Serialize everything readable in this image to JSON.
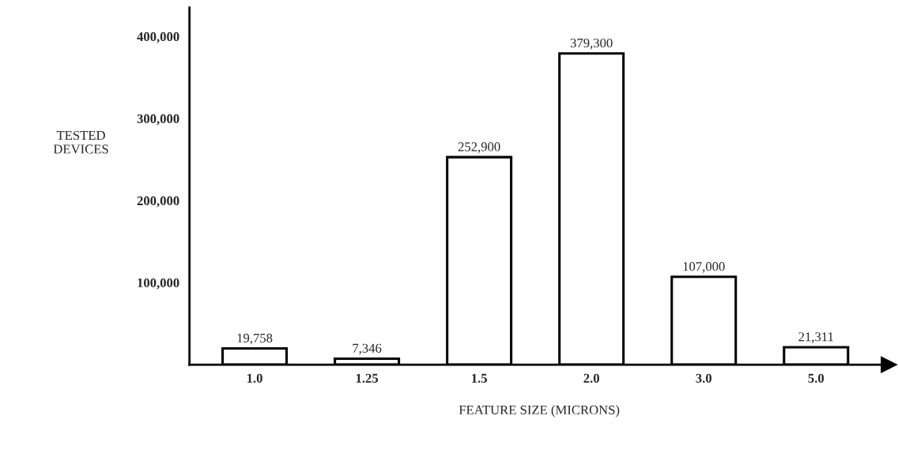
{
  "chart_data": {
    "type": "bar",
    "xlabel": "FEATURE SIZE (MICRONS)",
    "ylabel": "TESTED\nDEVICES",
    "categories": [
      "1.0",
      "1.25",
      "1.5",
      "2.0",
      "3.0",
      "5.0"
    ],
    "values": [
      19758,
      7346,
      252900,
      379300,
      107000,
      21311
    ],
    "value_labels": [
      "19,758",
      "7,346",
      "252,900",
      "379,300",
      "107,000",
      "21,311"
    ],
    "color": "#ffffff",
    "ylim": [
      0,
      435000
    ],
    "yticks": [
      {
        "value": 100000,
        "label": "100,000"
      },
      {
        "value": 200000,
        "label": "200,000"
      },
      {
        "value": 300000,
        "label": "300,000"
      },
      {
        "value": 400000,
        "label": "400,000"
      }
    ],
    "grid": false
  }
}
